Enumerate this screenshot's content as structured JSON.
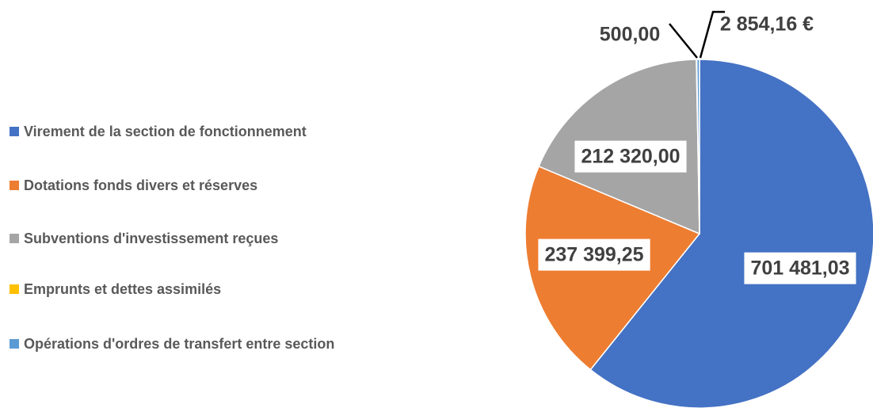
{
  "chart_data": {
    "type": "pie",
    "categories": [
      "Virement de la section de fonctionnement",
      "Dotations fonds divers et réserves",
      "Subventions d'investissement reçues",
      "Emprunts et dettes assimilés",
      "Opérations d'ordres de transfert entre section"
    ],
    "values": [
      701481.03,
      237399.25,
      212320.0,
      500.0,
      2854.16
    ],
    "value_labels": [
      "701 481,03",
      "237 399,25",
      "212 320,00",
      "500,00",
      "2 854,16 €"
    ],
    "colors": [
      "#4472c4",
      "#ed7d31",
      "#a5a5a5",
      "#ffc000",
      "#5b9bd5"
    ],
    "legend": "left"
  }
}
